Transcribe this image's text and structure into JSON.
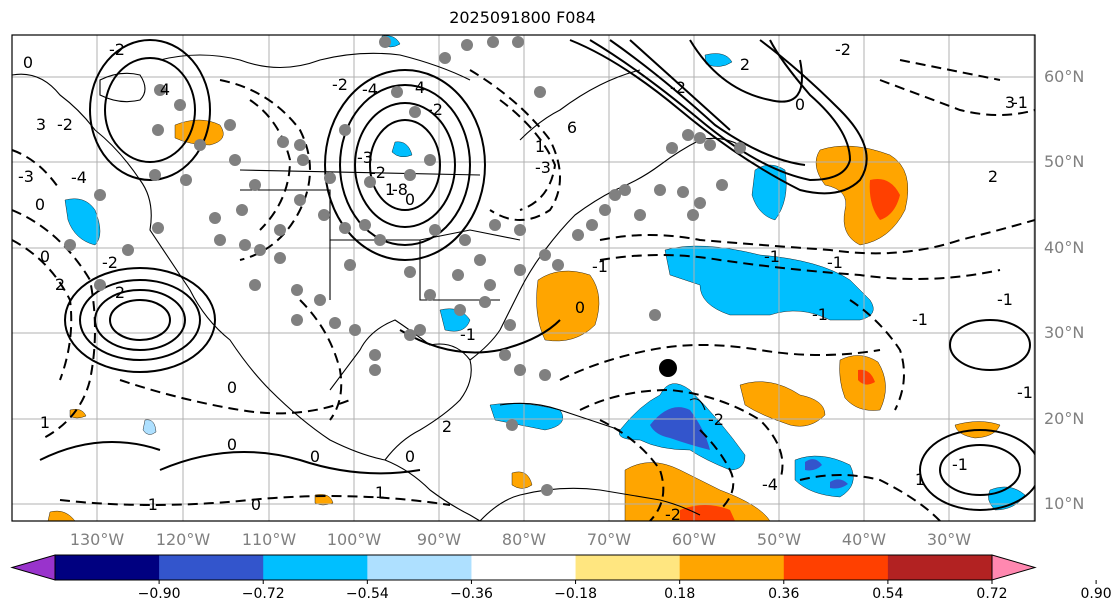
{
  "title": "2025091800 F084",
  "latitude_labels": [
    "60°N",
    "50°N",
    "40°N",
    "30°N",
    "20°N",
    "10°N"
  ],
  "longitude_labels": [
    "130°W",
    "120°W",
    "110°W",
    "100°W",
    "90°W",
    "80°W",
    "70°W",
    "60°W",
    "50°W",
    "40°W",
    "30°W"
  ],
  "colorbar": {
    "tick_labels": [
      "−0.90",
      "−0.72",
      "−0.54",
      "−0.36",
      "−0.18",
      "0.18",
      "0.36",
      "0.54",
      "0.72",
      "0.90"
    ],
    "colors": [
      "#9933cc",
      "#000080",
      "#3355cc",
      "#00bfff",
      "#aee0ff",
      "#ffffff",
      "#ffe680",
      "#ffa500",
      "#ff4000",
      "#b22222",
      "#ff88b0"
    ]
  },
  "contour_labels": [
    "-2",
    "0",
    "4",
    "3",
    "-2",
    "-3",
    "-4",
    "0",
    "2",
    "2",
    "-2",
    "0",
    "-2",
    "-4",
    "4",
    "-2",
    "-3",
    "-2",
    "-8",
    "0",
    "6",
    "-3",
    "2",
    "-2",
    "-2",
    "0",
    "3",
    "2",
    "-1",
    "-1",
    "-1",
    "-1",
    "0",
    "1",
    "0",
    "0",
    "0",
    "1",
    "-1",
    "0",
    "2",
    "-1",
    "0",
    "-2",
    "-2",
    "-4",
    "1",
    "-1",
    "-1",
    "-1",
    "1",
    "-1",
    "-1",
    "1"
  ],
  "marker": "filled black circle"
}
